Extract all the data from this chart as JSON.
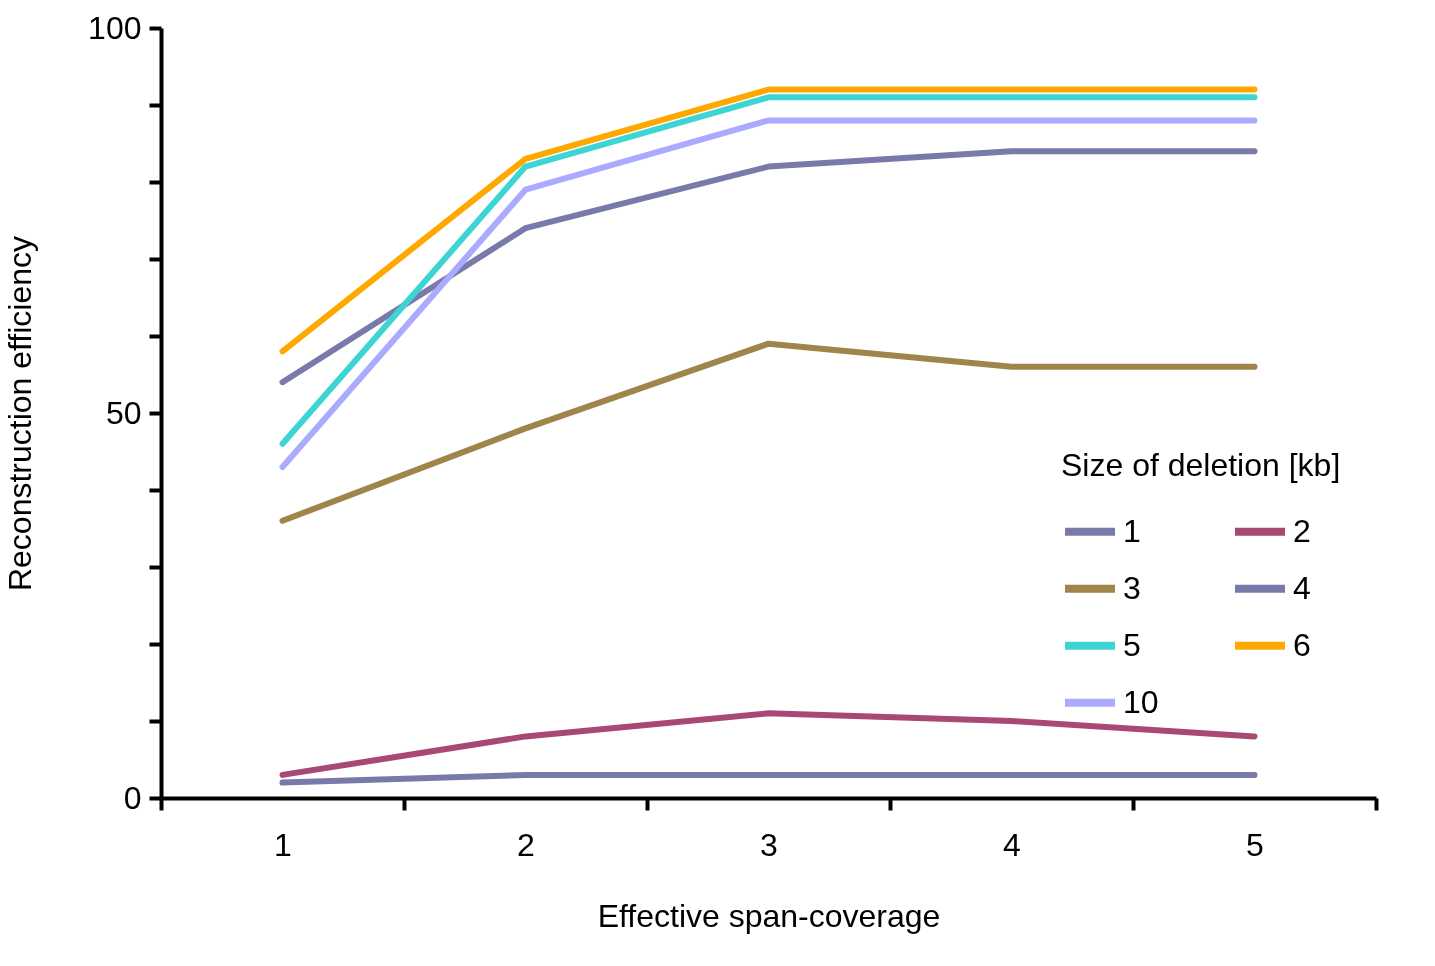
{
  "chart_data": {
    "type": "line",
    "xlabel": "Effective span-coverage",
    "ylabel": "Reconstruction efficiency",
    "legend_title": "Size of deletion [kb]",
    "x": [
      1,
      2,
      3,
      4,
      5
    ],
    "series": [
      {
        "name": "1",
        "color": "#7a7aaa",
        "values": [
          54,
          74,
          82,
          84,
          84
        ]
      },
      {
        "name": "2",
        "color": "#a84874",
        "values": [
          3,
          8,
          11,
          10,
          8
        ]
      },
      {
        "name": "3",
        "color": "#a0854a",
        "values": [
          36,
          48,
          59,
          56,
          56
        ]
      },
      {
        "name": "4",
        "color": "#7a7aaa",
        "values": [
          2,
          3,
          3,
          3,
          3
        ]
      },
      {
        "name": "5",
        "color": "#3dd4d4",
        "values": [
          46,
          82,
          91,
          91,
          91
        ]
      },
      {
        "name": "6",
        "color": "#ffa800",
        "values": [
          58,
          83,
          92,
          92,
          92
        ]
      },
      {
        "name": "10",
        "color": "#aaaaff",
        "values": [
          43,
          79,
          88,
          88,
          88
        ]
      }
    ],
    "xlim": [
      0.5,
      5.5
    ],
    "xticks": [
      {
        "value": 0.5,
        "label": null
      },
      1,
      {
        "value": 1.5,
        "label": null
      },
      2,
      {
        "value": 2.5,
        "label": null
      },
      3,
      {
        "value": 3.5,
        "label": null
      },
      4,
      {
        "value": 4.5,
        "label": null
      },
      5,
      {
        "value": 5.5,
        "label": null
      }
    ],
    "ylim": [
      0,
      100
    ],
    "yticks": [
      0,
      {
        "value": 10,
        "label": null
      },
      {
        "value": 20,
        "label": null
      },
      {
        "value": 30,
        "label": null
      },
      {
        "value": 40,
        "label": null
      },
      50,
      {
        "value": 60,
        "label": null
      },
      {
        "value": 70,
        "label": null
      },
      {
        "value": 80,
        "label": null
      },
      {
        "value": 90,
        "label": null
      },
      100
    ],
    "grid": false,
    "legend": "right",
    "marker": "none",
    "line_style": "solid"
  }
}
